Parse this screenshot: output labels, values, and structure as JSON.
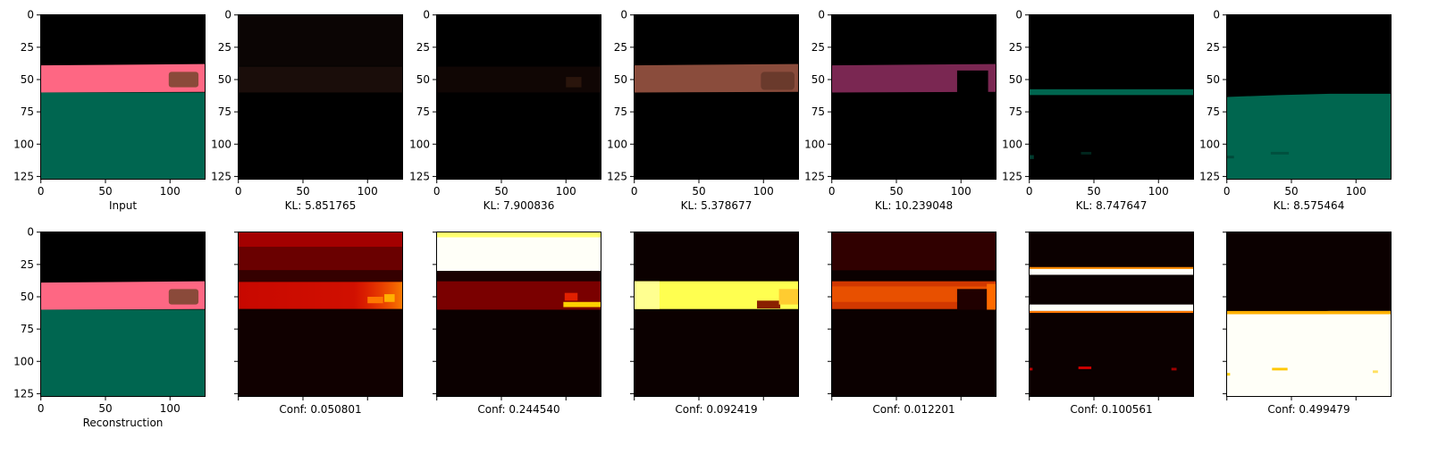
{
  "chart_data": {
    "type": "heatmap",
    "layout": {
      "rows": 2,
      "cols": 7
    },
    "x_ticks": [
      0,
      50,
      100
    ],
    "y_ticks": [
      0,
      25,
      50,
      75,
      100,
      125
    ],
    "xlim": [
      0,
      127
    ],
    "ylim": [
      127,
      0
    ],
    "panels": [
      {
        "row": 0,
        "col": 0,
        "kind": "input",
        "xlabel": "Input",
        "show_x_ticklabels": true,
        "show_y_ticklabels": true
      },
      {
        "row": 0,
        "col": 1,
        "kind": "slot_rgb",
        "xlabel": "KL: 5.851765",
        "kl": 5.851765,
        "show_x_ticklabels": true,
        "show_y_ticklabels": true
      },
      {
        "row": 0,
        "col": 2,
        "kind": "slot_rgb",
        "xlabel": "KL: 7.900836",
        "kl": 7.900836,
        "show_x_ticklabels": true,
        "show_y_ticklabels": true
      },
      {
        "row": 0,
        "col": 3,
        "kind": "slot_rgb",
        "xlabel": "KL: 5.378677",
        "kl": 5.378677,
        "show_x_ticklabels": true,
        "show_y_ticklabels": true
      },
      {
        "row": 0,
        "col": 4,
        "kind": "slot_rgb",
        "xlabel": "KL: 10.239048",
        "kl": 10.239048,
        "show_x_ticklabels": true,
        "show_y_ticklabels": true
      },
      {
        "row": 0,
        "col": 5,
        "kind": "slot_rgb",
        "xlabel": "KL: 8.747647",
        "kl": 8.747647,
        "show_x_ticklabels": true,
        "show_y_ticklabels": true
      },
      {
        "row": 0,
        "col": 6,
        "kind": "slot_rgb",
        "xlabel": "KL: 8.575464",
        "kl": 8.575464,
        "show_x_ticklabels": true,
        "show_y_ticklabels": true
      },
      {
        "row": 1,
        "col": 0,
        "kind": "reconstruction",
        "xlabel": "Reconstruction",
        "show_x_ticklabels": true,
        "show_y_ticklabels": true
      },
      {
        "row": 1,
        "col": 1,
        "kind": "mask",
        "xlabel": "Conf: 0.050801",
        "conf": 0.050801,
        "show_x_ticklabels": false,
        "show_y_ticklabels": false
      },
      {
        "row": 1,
        "col": 2,
        "kind": "mask",
        "xlabel": "Conf: 0.244540",
        "conf": 0.24454,
        "show_x_ticklabels": false,
        "show_y_ticklabels": false
      },
      {
        "row": 1,
        "col": 3,
        "kind": "mask",
        "xlabel": "Conf: 0.092419",
        "conf": 0.092419,
        "show_x_ticklabels": false,
        "show_y_ticklabels": false
      },
      {
        "row": 1,
        "col": 4,
        "kind": "mask",
        "xlabel": "Conf: 0.012201",
        "conf": 0.012201,
        "show_x_ticklabels": false,
        "show_y_ticklabels": false
      },
      {
        "row": 1,
        "col": 5,
        "kind": "mask",
        "xlabel": "Conf: 0.100561",
        "conf": 0.100561,
        "show_x_ticklabels": false,
        "show_y_ticklabels": false
      },
      {
        "row": 1,
        "col": 6,
        "kind": "mask",
        "xlabel": "Conf: 0.499479",
        "conf": 0.499479,
        "show_x_ticklabels": false,
        "show_y_ticklabels": false
      }
    ],
    "colors": {
      "scene_pink": "#fe6783",
      "scene_green": "#006650",
      "scene_object": "#8a4a3a",
      "slot_dark": "#1a0d0a",
      "slot_brown": "#8a4c3c",
      "slot_magenta": "#7a2752",
      "slot_teal": "#00664f",
      "mask_black": "#0b0000",
      "mask_dark_red": "#3a0000",
      "mask_red": "#a30000",
      "mask_orange": "#ff4400",
      "mask_yellow": "#ffff50",
      "mask_white": "#fffff8"
    }
  }
}
